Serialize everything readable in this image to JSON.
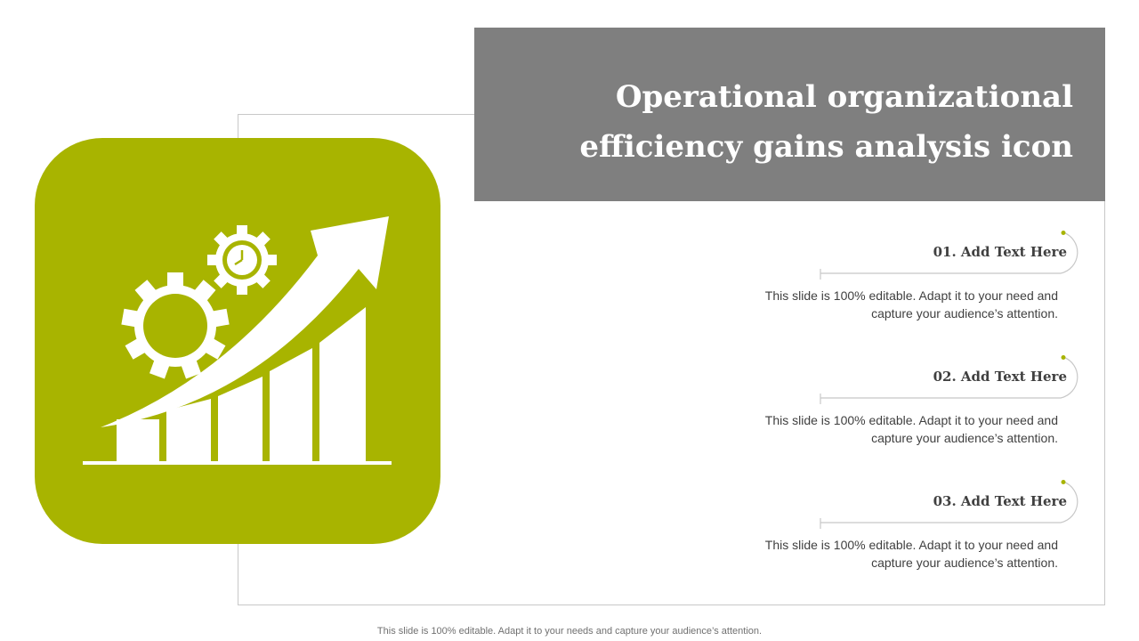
{
  "slide": {
    "title_line1": "Operational organizational",
    "title_line2": "efficiency gains analysis icon",
    "footer": "This slide is 100% editable. Adapt it to your needs and capture your audience’s attention.",
    "colors": {
      "accent": "#a8b400",
      "title_bg": "#7f7f7f",
      "text": "#404040"
    },
    "icon": "efficiency-gains-icon"
  },
  "items": [
    {
      "heading": "01. Add Text Here",
      "line1": "This slide is 100% editable. Adapt it to your need and",
      "line2": "capture your audience’s attention."
    },
    {
      "heading": "02. Add Text Here",
      "line1": "This slide is 100% editable. Adapt it to your need and",
      "line2": "capture your audience’s attention."
    },
    {
      "heading": "03. Add Text Here",
      "line1": "This slide is 100% editable. Adapt it to your need and",
      "line2": "capture your audience’s attention."
    }
  ]
}
